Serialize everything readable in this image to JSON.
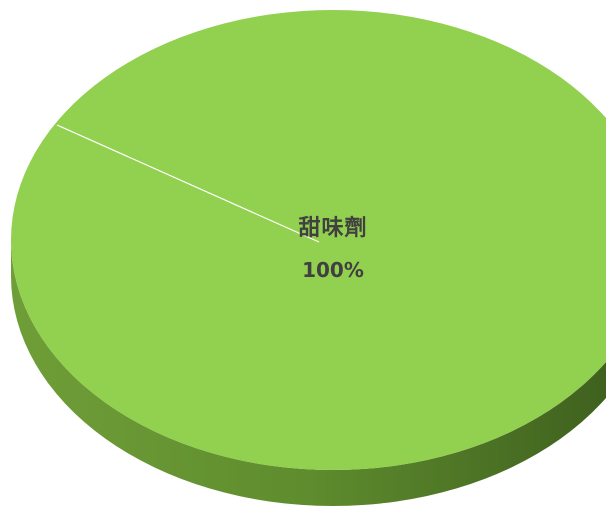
{
  "chart_data": {
    "type": "pie",
    "style": "3d",
    "categories": [
      "甜味劑"
    ],
    "values": [
      100
    ],
    "data_labels": [
      "100%"
    ],
    "colors": {
      "top": "#92d050",
      "side_dark": "#3a5a1c",
      "side_mid": "#5f8d2e",
      "side_light": "#6f9e38",
      "slice_edge": "#ffffff"
    }
  }
}
